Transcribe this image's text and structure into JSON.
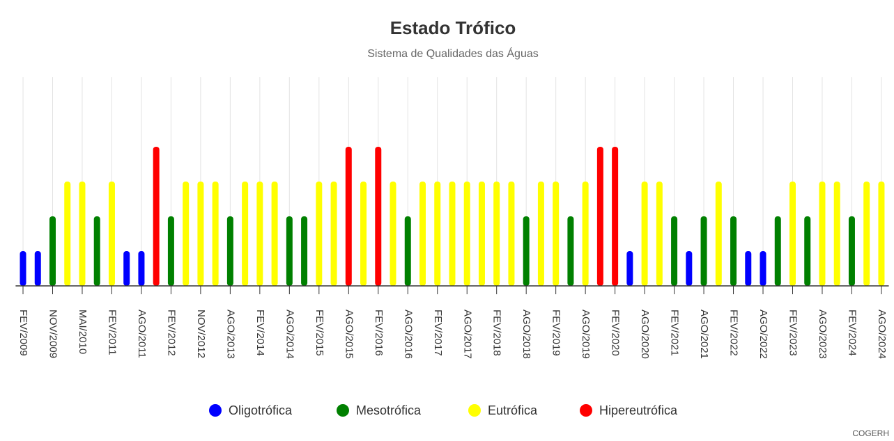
{
  "chart_data": {
    "type": "bar",
    "title": "Estado Trófico",
    "subtitle": "Sistema de Qualidades das Águas",
    "credit": "COGERH",
    "categories": [
      "FEV/2009",
      null,
      "NOV/2009",
      null,
      "MAI/2010",
      null,
      "FEV/2011",
      null,
      "AGO/2011",
      null,
      "FEV/2012",
      null,
      "NOV/2012",
      null,
      "AGO/2013",
      null,
      "FEV/2014",
      null,
      "AGO/2014",
      null,
      "FEV/2015",
      null,
      "AGO/2015",
      null,
      "FEV/2016",
      null,
      "AGO/2016",
      null,
      "FEV/2017",
      null,
      "AGO/2017",
      null,
      "FEV/2018",
      null,
      "AGO/2018",
      null,
      "FEV/2019",
      null,
      "AGO/2019",
      null,
      "FEV/2020",
      null,
      "AGO/2020",
      null,
      "FEV/2021",
      null,
      "AGO/2021",
      null,
      "FEV/2022",
      null,
      "AGO/2022",
      null,
      "FEV/2023",
      null,
      "AGO/2023",
      null,
      "FEV/2024",
      null,
      "AGO/2024"
    ],
    "series": [
      {
        "name": "Oligotrófica",
        "color": "#0000ff",
        "values": [
          1,
          1,
          null,
          null,
          null,
          null,
          null,
          1,
          1,
          null,
          null,
          null,
          null,
          null,
          null,
          null,
          null,
          null,
          null,
          null,
          null,
          null,
          null,
          null,
          null,
          null,
          null,
          null,
          null,
          null,
          null,
          null,
          null,
          null,
          null,
          null,
          null,
          null,
          null,
          null,
          null,
          1,
          null,
          null,
          null,
          1,
          null,
          null,
          null,
          1,
          1,
          null,
          null,
          null,
          null,
          null,
          null,
          null,
          null
        ]
      },
      {
        "name": "Mesotrófica",
        "color": "#008000",
        "values": [
          null,
          null,
          2,
          null,
          null,
          2,
          null,
          null,
          null,
          null,
          2,
          null,
          null,
          null,
          2,
          null,
          null,
          null,
          2,
          2,
          null,
          null,
          null,
          null,
          null,
          null,
          2,
          null,
          null,
          null,
          null,
          null,
          null,
          null,
          2,
          null,
          null,
          2,
          null,
          null,
          null,
          null,
          null,
          null,
          2,
          null,
          2,
          null,
          2,
          null,
          null,
          2,
          null,
          2,
          null,
          null,
          2,
          null,
          null
        ]
      },
      {
        "name": "Eutrófica",
        "color": "#ffff00",
        "values": [
          null,
          null,
          null,
          3,
          3,
          null,
          3,
          null,
          null,
          null,
          null,
          3,
          3,
          3,
          null,
          3,
          3,
          3,
          null,
          null,
          3,
          3,
          null,
          3,
          null,
          3,
          null,
          3,
          3,
          3,
          3,
          3,
          3,
          3,
          null,
          3,
          3,
          null,
          3,
          null,
          null,
          null,
          3,
          3,
          null,
          null,
          null,
          3,
          null,
          null,
          null,
          null,
          3,
          null,
          3,
          3,
          null,
          3,
          3
        ]
      },
      {
        "name": "Hipereutrófica",
        "color": "#ff0000",
        "values": [
          null,
          null,
          null,
          null,
          null,
          null,
          null,
          null,
          null,
          4,
          null,
          null,
          null,
          null,
          null,
          null,
          null,
          null,
          null,
          null,
          null,
          null,
          4,
          null,
          4,
          null,
          null,
          null,
          null,
          null,
          null,
          null,
          null,
          null,
          null,
          null,
          null,
          null,
          null,
          4,
          4,
          null,
          null,
          null,
          null,
          null,
          null,
          null,
          null,
          null,
          null,
          null,
          null,
          null,
          null,
          null,
          null,
          null,
          null
        ]
      }
    ],
    "ylim": [
      0,
      6
    ],
    "grid": true,
    "legend": "bottom"
  }
}
